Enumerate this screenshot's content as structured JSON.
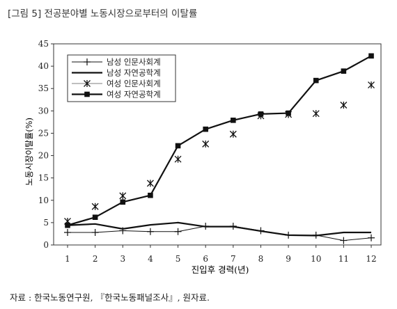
{
  "figure": {
    "title": "[그림 5] 전공분야별 노동시장으로부터의 이탈률",
    "source": "자료 : 한국노동연구원, 『한국노동패널조사』, 원자료."
  },
  "chart_data": {
    "type": "line",
    "xlabel": "진입후 경력(년)",
    "ylabel": "노동시장이탈률(%)",
    "x": [
      1,
      2,
      3,
      4,
      5,
      6,
      7,
      8,
      9,
      10,
      11,
      12
    ],
    "xlim": [
      1,
      12
    ],
    "ylim": [
      0,
      45
    ],
    "yticks": [
      0,
      5,
      10,
      15,
      20,
      25,
      30,
      35,
      40,
      45
    ],
    "grid": false,
    "legend_position": "top-left",
    "series": [
      {
        "name": "남성 인문사회계",
        "marker": "plus",
        "line": "thin",
        "values": [
          2.8,
          2.8,
          3.2,
          3.0,
          3.0,
          4.2,
          4.2,
          3.2,
          2.2,
          2.2,
          1.0,
          1.6
        ]
      },
      {
        "name": "남성 자연공학계",
        "marker": "none",
        "line": "thick",
        "values": [
          4.4,
          4.7,
          3.6,
          4.5,
          5.0,
          4.1,
          4.1,
          3.1,
          2.2,
          2.1,
          2.8,
          2.8
        ]
      },
      {
        "name": "여성 인문사회계",
        "marker": "asterisk",
        "line": "none",
        "values": [
          5.3,
          8.6,
          11.0,
          13.8,
          19.2,
          22.6,
          24.8,
          28.9,
          29.2,
          29.4,
          31.3,
          35.8
        ]
      },
      {
        "name": "여성 자연공학계",
        "marker": "square",
        "line": "thick",
        "values": [
          4.4,
          6.2,
          9.6,
          11.1,
          22.2,
          25.9,
          27.9,
          29.3,
          29.5,
          36.8,
          38.9,
          42.3
        ]
      }
    ]
  }
}
